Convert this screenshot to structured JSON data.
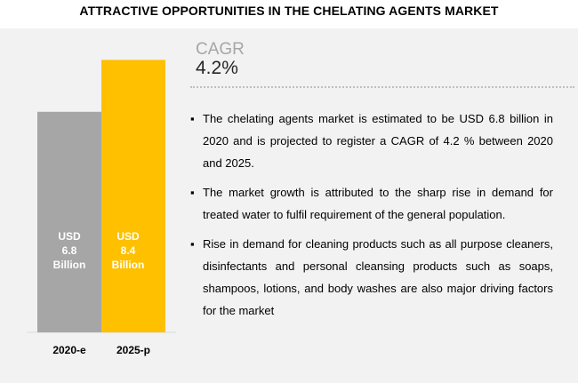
{
  "title": "ATTRACTIVE OPPORTUNITIES IN THE CHELATING AGENTS MARKET",
  "cagr": {
    "label": "CAGR",
    "value": "4.2%"
  },
  "bullets": [
    "The chelating agents market is estimated to be USD 6.8 billion in 2020 and is projected to register a CAGR of 4.2 % between 2020 and 2025.",
    "The market growth is attributed to the sharp rise in demand for treated water to fulfil requirement of the general population.",
    "Rise in demand for cleaning products such as all purpose cleaners, disinfectants and personal cleansing products such as soaps, shampoos, lotions,  and body washes are also major driving factors for the market"
  ],
  "colors": {
    "bar_2020": "#a6a6a6",
    "bar_2025": "#ffc000",
    "panel": "#f2f2f2"
  },
  "chart_data": {
    "type": "bar",
    "categories": [
      "2020-e",
      "2025-p"
    ],
    "values": [
      6.8,
      8.4
    ],
    "bar_labels": [
      [
        "USD",
        "6.8",
        "Billion"
      ],
      [
        "USD",
        "8.4",
        "Billion"
      ]
    ],
    "colors": [
      "#a6a6a6",
      "#ffc000"
    ],
    "ylim": [
      0,
      9
    ]
  }
}
